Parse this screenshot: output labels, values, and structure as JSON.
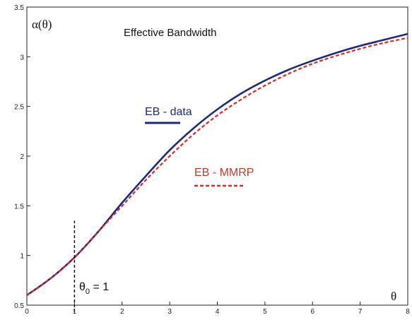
{
  "chart_data": {
    "type": "line",
    "title": "Effective Bandwidth",
    "ylabel": "α(θ)",
    "xlabel": "θ",
    "xlim": [
      0,
      8
    ],
    "ylim": [
      0.5,
      3.5
    ],
    "xticks": [
      "0",
      "1",
      "2",
      "3",
      "4",
      "5",
      "6",
      "7",
      "8"
    ],
    "yticks": [
      "0.5",
      "1",
      "1.5",
      "2",
      "2.5",
      "3",
      "3.5"
    ],
    "grid": false,
    "series": [
      {
        "name": "EB - data",
        "color": "#1f2a7a",
        "style": "solid",
        "x": [
          0,
          0.5,
          1,
          1.5,
          2,
          2.5,
          3,
          3.5,
          4,
          4.5,
          5,
          5.5,
          6,
          6.5,
          7,
          7.5,
          8
        ],
        "y": [
          0.6,
          0.77,
          0.98,
          1.24,
          1.53,
          1.8,
          2.06,
          2.28,
          2.47,
          2.63,
          2.76,
          2.87,
          2.96,
          3.04,
          3.11,
          3.17,
          3.23
        ]
      },
      {
        "name": "EB - MMRP",
        "color": "#d62a2a",
        "style": "dashed",
        "x": [
          0,
          0.5,
          1,
          1.5,
          2,
          2.5,
          3,
          3.5,
          4,
          4.5,
          5,
          5.5,
          6,
          6.5,
          7,
          7.5,
          8
        ],
        "y": [
          0.6,
          0.77,
          0.98,
          1.24,
          1.5,
          1.76,
          2.0,
          2.22,
          2.41,
          2.57,
          2.71,
          2.83,
          2.93,
          3.01,
          3.08,
          3.14,
          3.19
        ]
      }
    ],
    "annotations": {
      "theta0_line_x": 1,
      "theta0_line_y": [
        0.5,
        1.35
      ],
      "theta0_label": "θ",
      "theta0_sub": "0",
      "theta0_value": " = 1"
    }
  }
}
